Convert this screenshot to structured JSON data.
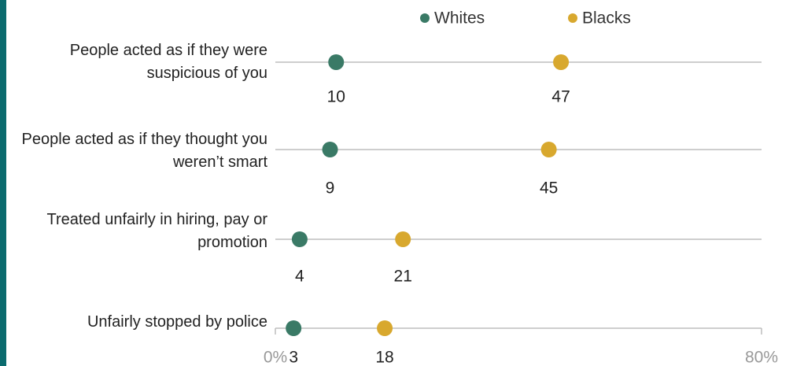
{
  "chart_data": {
    "type": "dot",
    "categories": [
      "People acted as if they were suspicious of you",
      "People acted as if they thought you weren’t smart",
      "Treated unfairly in hiring, pay or promotion",
      "Unfairly stopped by police"
    ],
    "series": [
      {
        "name": "Whites",
        "color": "#3a7a66",
        "values": [
          10,
          9,
          4,
          3
        ]
      },
      {
        "name": "Blacks",
        "color": "#d8a82e",
        "values": [
          47,
          45,
          21,
          18
        ]
      }
    ],
    "xlim": [
      0,
      80
    ],
    "xticks": [
      {
        "value": 0,
        "label": "0%"
      },
      {
        "value": 80,
        "label": "80%"
      }
    ]
  }
}
